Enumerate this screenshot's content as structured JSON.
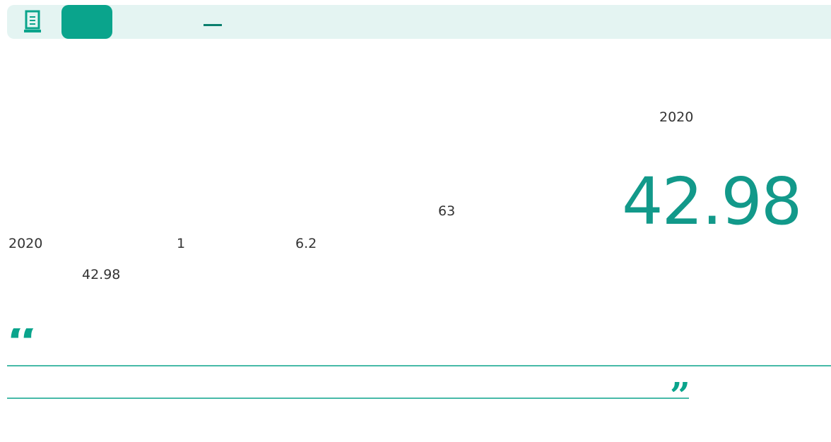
{
  "header": {
    "year": "2020",
    "big_number": "42.98"
  },
  "body": {
    "n1": "63",
    "line1_year": "2020",
    "line1_n": "1",
    "line1_v": "6.2",
    "line2_v": "42.98"
  }
}
